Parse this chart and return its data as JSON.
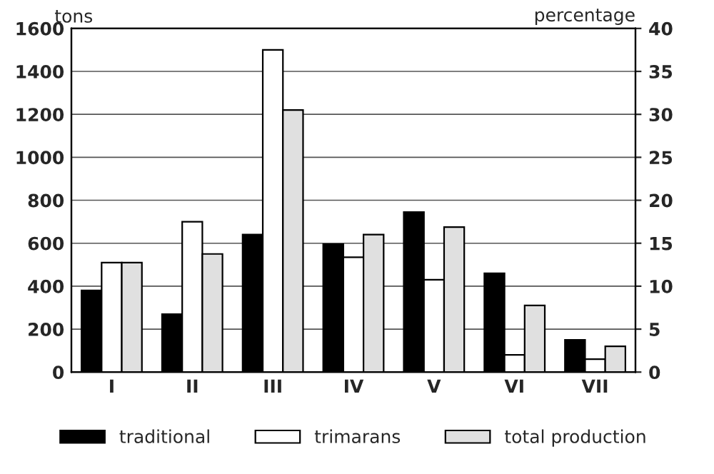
{
  "chart_data": {
    "type": "bar",
    "ylabel": "tons",
    "y2label": "percentage",
    "categories": [
      "I",
      "II",
      "III",
      "IV",
      "V",
      "VI",
      "VII"
    ],
    "series": [
      {
        "name": "traditional",
        "color": "#000000",
        "values": [
          380,
          270,
          640,
          595,
          745,
          460,
          150
        ]
      },
      {
        "name": "trimarans",
        "color": "#ffffff",
        "values": [
          510,
          700,
          1500,
          535,
          430,
          80,
          60
        ]
      },
      {
        "name": "total production",
        "color": "#e0e0e0",
        "values": [
          510,
          550,
          1220,
          640,
          675,
          310,
          120
        ]
      }
    ],
    "ylim": [
      0,
      1600
    ],
    "yticks": [
      0,
      200,
      400,
      600,
      800,
      1000,
      1200,
      1400,
      1600
    ],
    "y2lim": [
      0,
      40
    ],
    "y2ticks": [
      0,
      5,
      10,
      15,
      20,
      25,
      30,
      35,
      40
    ],
    "grid": "y",
    "legend": "bottom"
  }
}
